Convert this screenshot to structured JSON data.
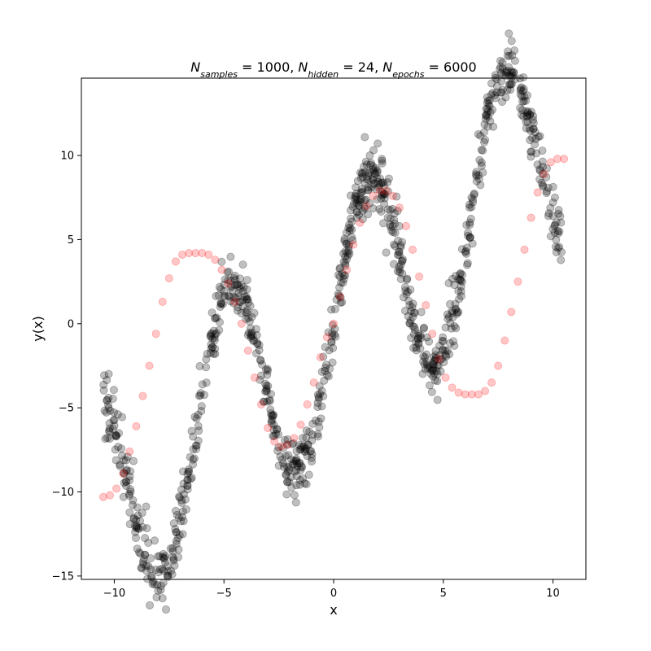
{
  "chart_data": {
    "type": "scatter",
    "title": {
      "parts": [
        {
          "base": "N",
          "sub": "samples",
          "rest": " = 1000, "
        },
        {
          "base": "N",
          "sub": "hidden",
          "rest": " = 24, "
        },
        {
          "base": "N",
          "sub": "epochs",
          "rest": " = 6000"
        }
      ]
    },
    "xlabel": "x",
    "ylabel": "y(x)",
    "xlim": [
      -11.5,
      11.5
    ],
    "ylim": [
      -15.2,
      14.6
    ],
    "xticks": [
      {
        "value": -10,
        "label": "−10"
      },
      {
        "value": -5,
        "label": "−5"
      },
      {
        "value": 0,
        "label": "0"
      },
      {
        "value": 5,
        "label": "5"
      },
      {
        "value": 10,
        "label": "10"
      }
    ],
    "yticks": [
      {
        "value": -15,
        "label": "−15"
      },
      {
        "value": -10,
        "label": "−10"
      },
      {
        "value": -5,
        "label": "−5"
      },
      {
        "value": 0,
        "label": "0"
      },
      {
        "value": 5,
        "label": "5"
      },
      {
        "value": 10,
        "label": "10"
      }
    ],
    "grid": false,
    "legend": "none",
    "series": [
      {
        "role": "samples",
        "color": "#000000",
        "opacity": 0.25,
        "n_points": 1000,
        "x_range": [
          -10.5,
          10.5
        ],
        "generator": "y = x + 7*sin(x) + noise",
        "noise_sd": 0.9,
        "seed": 7
      },
      {
        "role": "network_prediction",
        "color": "#ff0000",
        "opacity": 0.22,
        "x": [
          -10.5,
          -10.2,
          -9.9,
          -9.6,
          -9.3,
          -9.0,
          -8.7,
          -8.4,
          -8.1,
          -7.8,
          -7.5,
          -7.2,
          -6.9,
          -6.6,
          -6.3,
          -6.0,
          -5.7,
          -5.4,
          -5.1,
          -4.8,
          -4.5,
          -4.2,
          -3.9,
          -3.6,
          -3.3,
          -3.0,
          -2.7,
          -2.4,
          -2.1,
          -1.8,
          -1.5,
          -1.2,
          -0.9,
          -0.6,
          -0.3,
          0.0,
          0.3,
          0.6,
          0.9,
          1.2,
          1.5,
          1.8,
          2.1,
          2.4,
          2.7,
          3.0,
          3.3,
          3.6,
          3.9,
          4.2,
          4.5,
          4.8,
          5.1,
          5.4,
          5.7,
          6.0,
          6.3,
          6.6,
          6.9,
          7.2,
          7.5,
          7.8,
          8.1,
          8.4,
          8.7,
          9.0,
          9.3,
          9.6,
          9.9,
          10.2,
          10.5
        ],
        "y": [
          -10.3,
          -10.2,
          -9.8,
          -8.9,
          -7.6,
          -6.1,
          -4.3,
          -2.5,
          -0.6,
          1.3,
          2.7,
          3.7,
          4.1,
          4.2,
          4.2,
          4.2,
          4.1,
          3.8,
          3.2,
          2.4,
          1.3,
          0.0,
          -1.6,
          -3.2,
          -4.8,
          -6.2,
          -7.0,
          -7.3,
          -7.2,
          -6.8,
          -6.0,
          -4.8,
          -3.5,
          -2.0,
          -0.8,
          0.0,
          1.6,
          3.2,
          4.7,
          6.0,
          7.0,
          7.6,
          7.9,
          7.9,
          7.6,
          6.9,
          5.8,
          4.4,
          2.8,
          1.1,
          -0.6,
          -2.1,
          -3.2,
          -3.8,
          -4.1,
          -4.2,
          -4.2,
          -4.2,
          -4.0,
          -3.5,
          -2.5,
          -1.0,
          0.7,
          2.5,
          4.4,
          6.3,
          7.8,
          8.9,
          9.6,
          9.8,
          9.8
        ]
      }
    ]
  }
}
